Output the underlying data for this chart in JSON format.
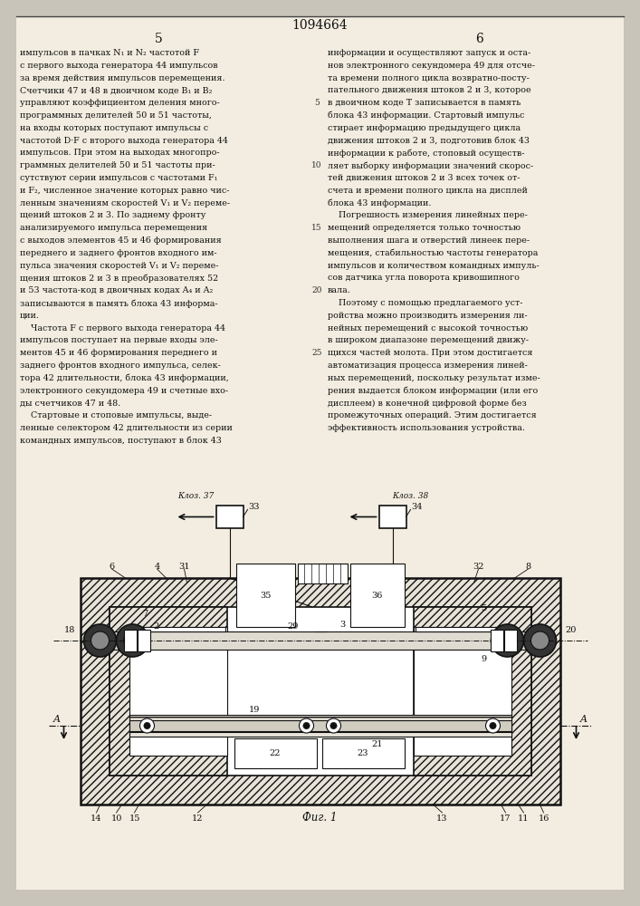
{
  "title": "1094664",
  "col_left_num": "5",
  "col_right_num": "6",
  "bg_color": "#c8c4ba",
  "page_color": "#f2ede0",
  "text_color": "#111111",
  "fig_label": "Фиг. 1",
  "left_text": [
    "импульсов в пачках N₁ и N₂ частотой F",
    "с первого выхода генератора 44 импульсов",
    "за время действия импульсов перемещения.",
    "Счетчики 47 и 48 в двоичном коде B₁ и B₂",
    "управляют коэффициентом деления много-",
    "программных делителей 50 и 51 частоты,",
    "на входы которых поступают импульсы с",
    "частотой D·F с второго выхода генератора 44",
    "импульсов. При этом на выходах многопро-",
    "граммных делителей 50 и 51 частоты при-",
    "сутствуют серии импульсов с частотами F₁",
    "и F₂, численное значение которых равно чис-",
    "ленным значениям скоростей V₁ и V₂ переме-",
    "щений штоков 2 и 3. По заднему фронту",
    "анализируемого импульса перемещения",
    "с выходов элементов 45 и 46 формирования",
    "переднего и заднего фронтов входного им-",
    "пульса значения скоростей V₁ и V₂ переме-",
    "щения штоков 2 и 3 в преобразователях 52",
    "и 53 частота-код в двоичных кодах A₄ и A₂",
    "записываются в память блока 43 информа-",
    "ции.",
    "    Частота F с первого выхода генератора 44",
    "импульсов поступает на первые входы эле-",
    "ментов 45 и 46 формирования переднего и",
    "заднего фронтов входного импульса, селек-",
    "тора 42 длительности, блока 43 информации,",
    "электронного секундомера 49 и счетные вхо-",
    "ды счетчиков 47 и 48.",
    "    Стартовые и стоповые импульсы, выде-",
    "ленные селектором 42 длительности из серии",
    "командных импульсов, поступают в блок 43"
  ],
  "right_text": [
    "информации и осуществляют запуск и оста-",
    "нов электронного секундомера 49 для отсче-",
    "та времени полного цикла возвратно-посту-",
    "пательного движения штоков 2 и 3, которое",
    "в двоичном коде T записывается в память",
    "блока 43 информации. Стартовый импульс",
    "стирает информацию предыдущего цикла",
    "движения штоков 2 и 3, подготовив блок 43",
    "информации к работе, стоповый осуществ-",
    "ляет выборку информации значений скорос-",
    "тей движения штоков 2 и 3 всех точек от-",
    "счета и времени полного цикла на дисплей",
    "блока 43 информации.",
    "    Погрешность измерения линейных пере-",
    "мещений определяется только точностью",
    "выполнения шага и отверстий линеек пере-",
    "мещения, стабильностью частоты генератора",
    "импульсов и количеством командных импуль-",
    "сов датчика угла поворота кривошипного",
    "вала.",
    "    Поэтому с помощью предлагаемого уст-",
    "ройства можно производить измерения ли-",
    "нейных перемещений с высокой точностью",
    "в широком диапазоне перемещений движу-",
    "щихся частей молота. При этом достигается",
    "автоматизация процесса измерения линей-",
    "ных перемещений, поскольку результат изме-",
    "рения выдается блоком информации (или его",
    "дисплеем) в конечной цифровой форме без",
    "промежуточных операций. Этим достигается",
    "эффективность использования устройства."
  ]
}
